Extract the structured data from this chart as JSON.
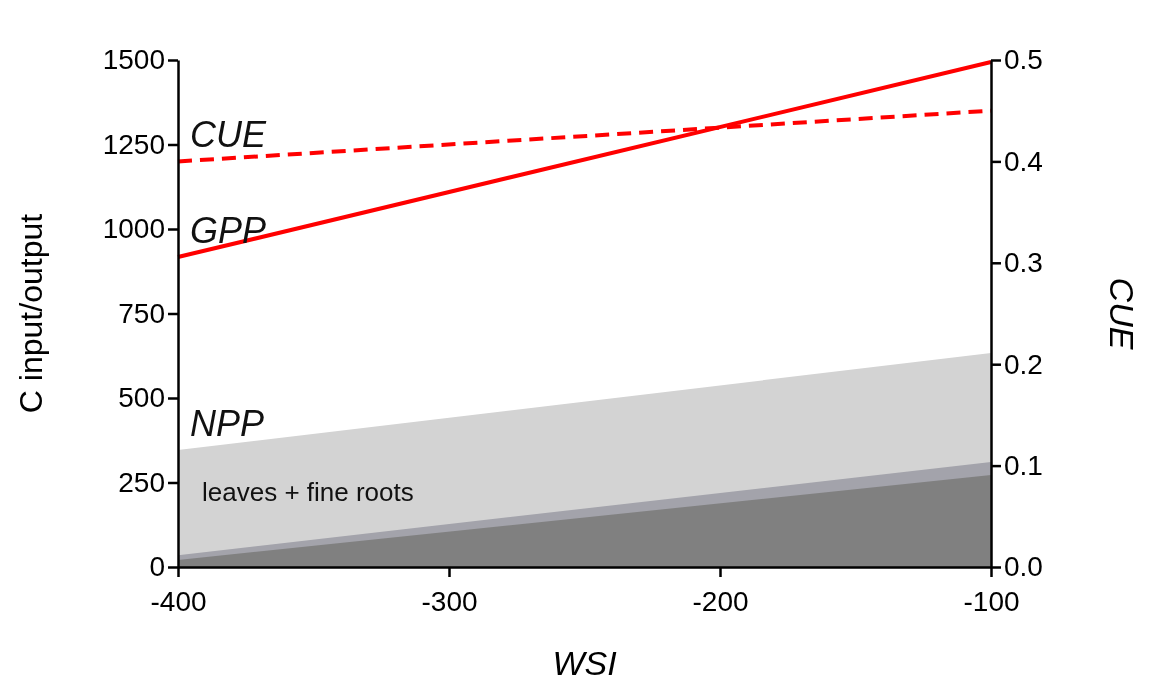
{
  "chart_data": {
    "type": "line",
    "xlabel": "WSI",
    "ylabel": "C input/output",
    "y2label": "CUE",
    "x": [
      -400,
      -100
    ],
    "xlim": [
      -400,
      -100
    ],
    "xticks": [
      -400,
      -300,
      -200,
      -100
    ],
    "ylim": [
      0,
      1500
    ],
    "yticks": [
      0,
      250,
      500,
      750,
      1000,
      1250,
      1500
    ],
    "y2lim": [
      0,
      0.5
    ],
    "y2ticks": [
      {
        "value": 0,
        "label": "0.0"
      },
      0.1,
      0.2,
      0.3,
      0.4,
      0.5
    ],
    "grid": false,
    "legend": false,
    "series": [
      {
        "name": "NPP",
        "type": "area",
        "color": "#d3d3d3",
        "values": [
          346,
          633
        ]
      },
      {
        "type": "area",
        "color": "#a3a3ab",
        "values": [
          35,
          311
        ]
      },
      {
        "type": "area",
        "color": "#808080",
        "values": [
          21,
          272
        ]
      },
      {
        "name": "GPP",
        "color": "#ff0000",
        "line_style": "solid",
        "values": [
          917,
          1494
        ]
      },
      {
        "name": "CUE",
        "color": "#ff0000",
        "line_style": "dashed",
        "axis": "y2",
        "values": [
          0.4,
          0.45
        ]
      }
    ],
    "annotations": [
      "leaves + fine roots"
    ]
  }
}
